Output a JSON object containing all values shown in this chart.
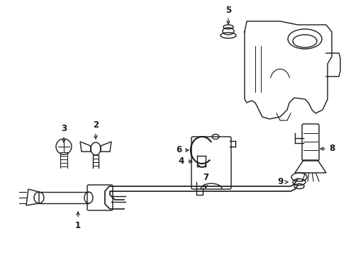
{
  "background_color": "#ffffff",
  "line_color": "#1a1a1a",
  "figure_width": 4.89,
  "figure_height": 3.6,
  "dpi": 100,
  "label_fontsize": 8.5,
  "lw": 1.0
}
